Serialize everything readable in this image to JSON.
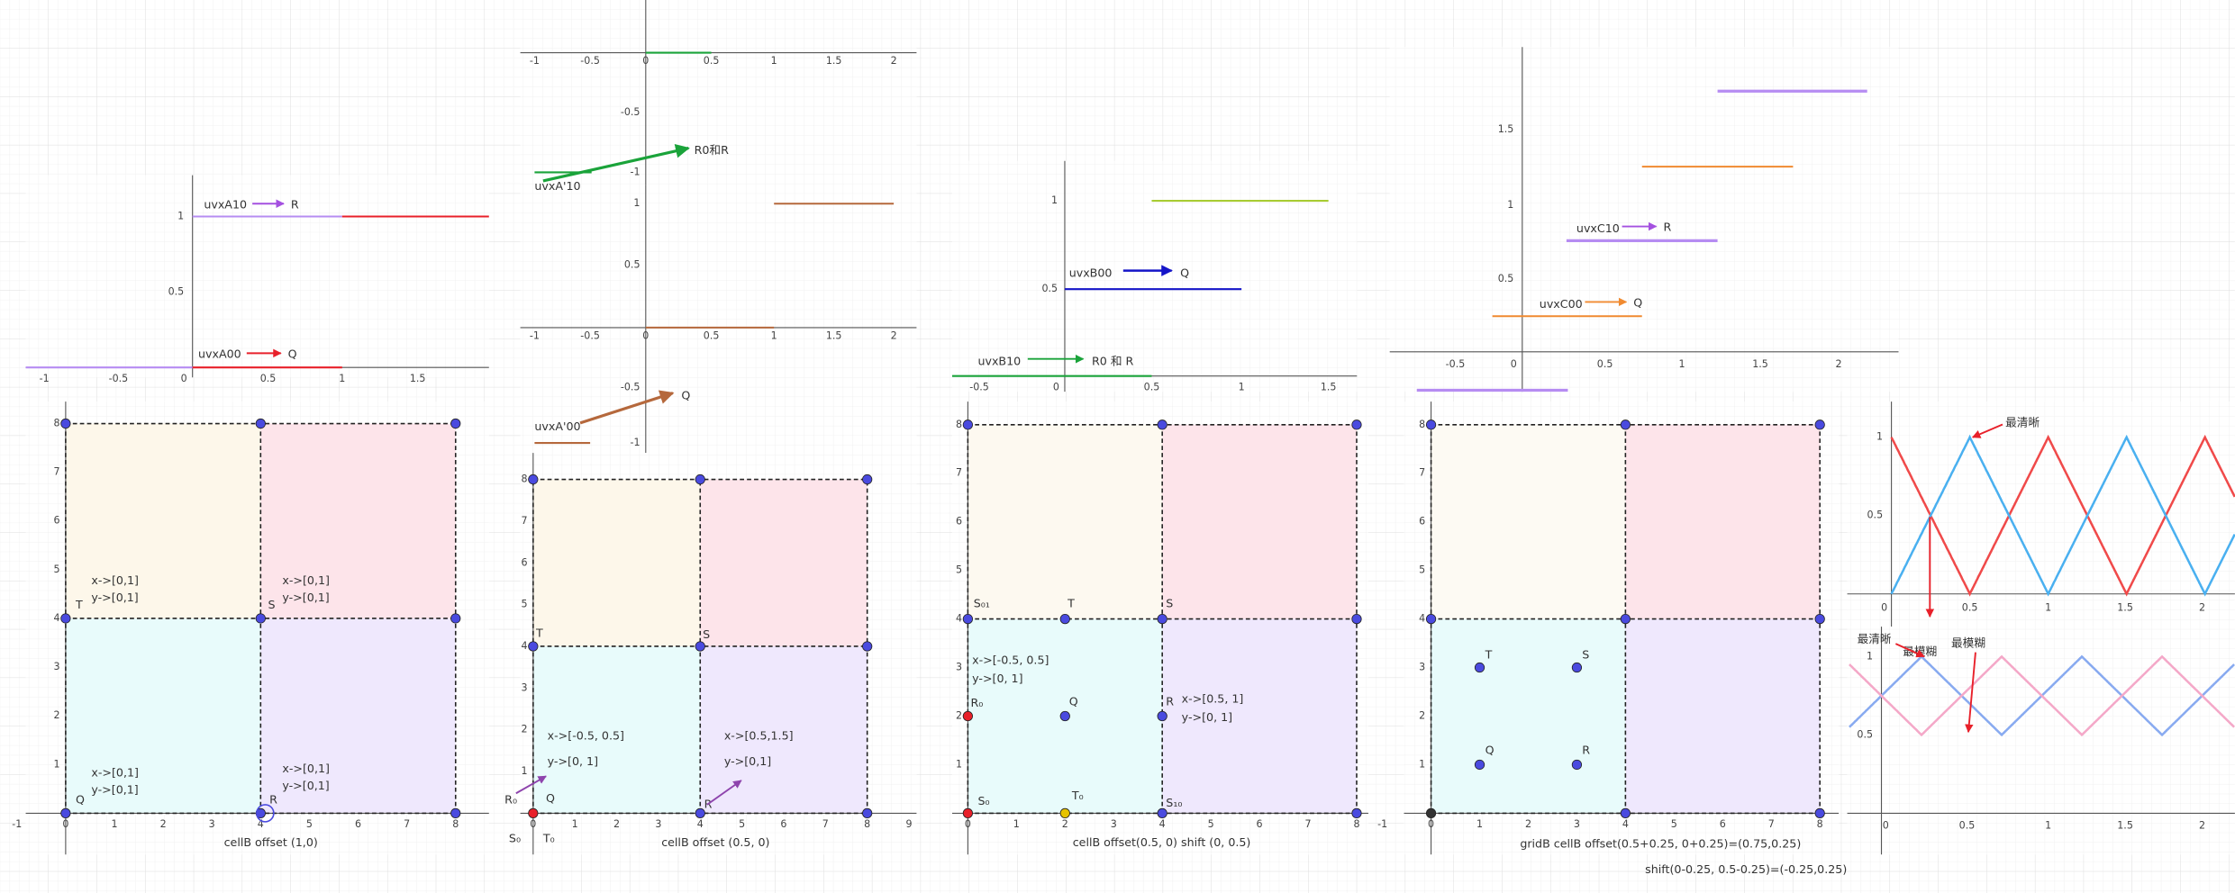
{
  "plots": [
    {
      "xticks": [
        "-1",
        "-0.5",
        "0",
        "0.5",
        "1",
        "1.5"
      ],
      "yticks": [
        "1",
        "0.5"
      ],
      "labels": [
        "uvxA10",
        "R",
        "uvxA00",
        "Q"
      ]
    },
    {
      "xticks": [
        "-1",
        "-0.5",
        "0",
        "0.5",
        "1",
        "1.5",
        "2"
      ],
      "yticks": [
        "-0.5",
        "-1"
      ],
      "labels": [
        "uvxA'10",
        "R0和R"
      ]
    },
    {
      "xticks": [
        "-1",
        "-0.5",
        "0",
        "0.5",
        "1",
        "1.5",
        "2"
      ],
      "yticks": [
        "1",
        "0.5",
        "-0.5",
        "-1"
      ],
      "labels": [
        "uvxA'00",
        "Q"
      ]
    },
    {
      "xticks": [
        "-0.5",
        "0",
        "0.5",
        "1",
        "1.5"
      ],
      "yticks": [
        "1",
        "0.5"
      ],
      "labels": [
        "uvxB00",
        "Q",
        "uvxB10",
        "R0 和 R"
      ]
    },
    {
      "xticks": [
        "-0.5",
        "0",
        "0.5",
        "1",
        "1.5",
        "2"
      ],
      "yticks": [
        "1.5",
        "1",
        "0.5"
      ],
      "labels": [
        "uvxC10",
        "R",
        "uvxC00",
        "Q"
      ]
    },
    {
      "xticks": [
        "0",
        "0.5",
        "1",
        "1.5",
        "2"
      ],
      "yticks": [
        "1",
        "0.5"
      ],
      "labels": [
        "最清晰",
        "最模糊"
      ]
    },
    {
      "xticks": [
        "0",
        "0.5",
        "1",
        "1.5",
        "2"
      ],
      "yticks": [
        "1",
        "0.5"
      ],
      "labels": [
        "最清晰",
        "最模糊"
      ]
    }
  ],
  "grids": [
    {
      "xticks": [
        "-1",
        "0",
        "1",
        "2",
        "3",
        "4",
        "5",
        "6",
        "7",
        "8"
      ],
      "yticks": [
        "1",
        "2",
        "3",
        "4",
        "5",
        "6",
        "7",
        "8"
      ],
      "labels": [
        "x->[0,1]",
        "y->[0,1]",
        "x->[0,1]",
        "y->[0,1]",
        "x->[0,1]",
        "y->[0,1]",
        "x->[0,1]",
        "y->[0,1]",
        "Q",
        "T",
        "S",
        "R"
      ],
      "caption": "cellB offset (1,0)"
    },
    {
      "xticks": [
        "0",
        "1",
        "2",
        "3",
        "4",
        "5",
        "6",
        "7",
        "8",
        "9"
      ],
      "yticks": [
        "1",
        "2",
        "3",
        "4",
        "5",
        "6",
        "7",
        "8"
      ],
      "labels": [
        "x->[-0.5, 0.5]",
        "y->[0, 1]",
        "x->[0.5,1.5]",
        "y->[0,1]",
        "T",
        "S",
        "R",
        "Q",
        "R₀",
        "S₀",
        "T₀"
      ],
      "caption": "cellB offset (0.5, 0)"
    },
    {
      "xticks": [
        "0",
        "1",
        "2",
        "3",
        "4",
        "5",
        "6",
        "7",
        "8"
      ],
      "yticks": [
        "1",
        "2",
        "3",
        "4",
        "5",
        "6",
        "7",
        "8"
      ],
      "labels": [
        "S₀₁",
        "T",
        "S",
        "x->[-0.5, 0.5]",
        "y->[0, 1]",
        "R₀",
        "Q",
        "R",
        "x->[0.5, 1]",
        "y->[0, 1]",
        "S₀",
        "T₀",
        "S₁₀"
      ],
      "caption": "cellB offset(0.5, 0) shift (0, 0.5)"
    },
    {
      "xticks": [
        "-1",
        "0",
        "1",
        "2",
        "3",
        "4",
        "5",
        "6",
        "7",
        "8"
      ],
      "yticks": [
        "1",
        "2",
        "3",
        "4",
        "5",
        "6",
        "7",
        "8"
      ],
      "labels": [
        "T",
        "S",
        "Q",
        "R"
      ],
      "caption": [
        "gridB cellB offset(0.5+0.25, 0+0.25)=(0.75,0.25)",
        "shift(0-0.25, 0.5-0.25)=(-0.25,0.25)"
      ]
    }
  ]
}
